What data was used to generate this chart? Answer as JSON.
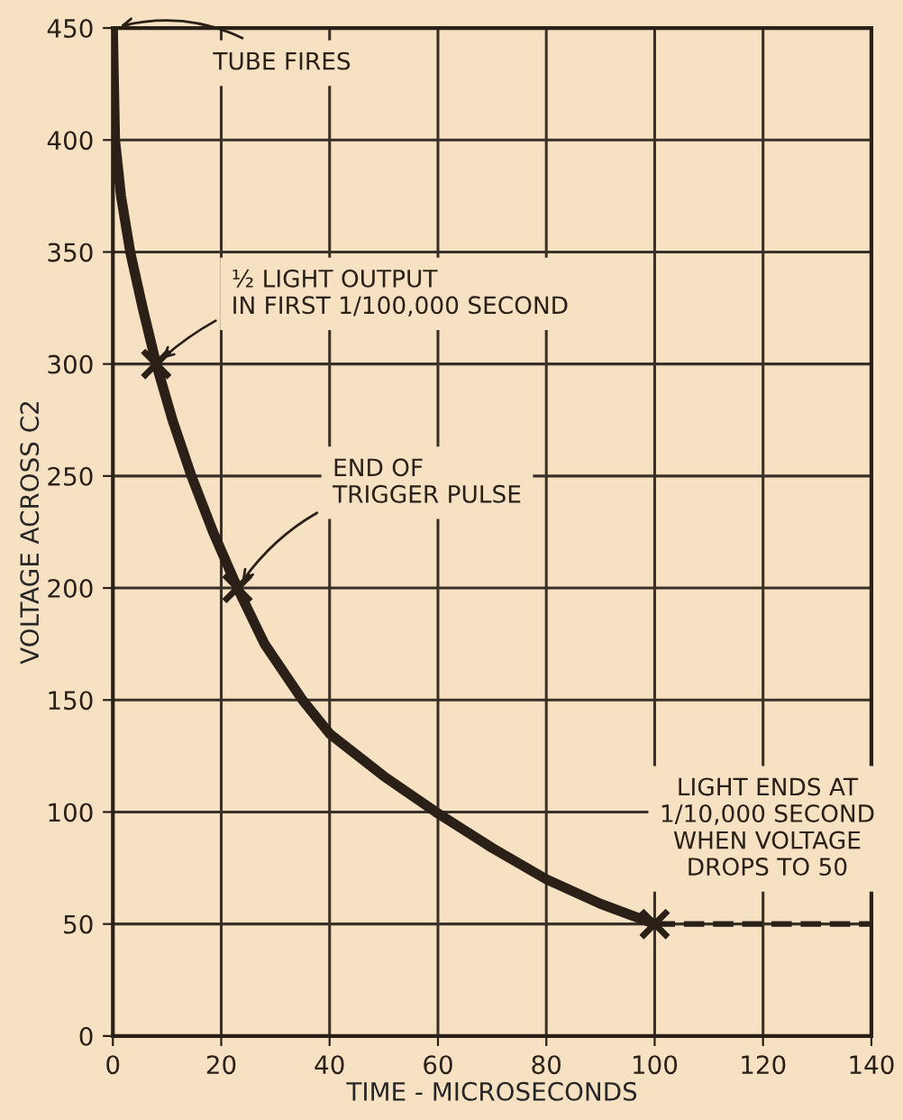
{
  "chart_data": {
    "type": "line",
    "xlabel": "TIME - MICROSECONDS",
    "ylabel": "VOLTAGE ACROSS C2",
    "xlim": [
      0,
      140
    ],
    "ylim": [
      0,
      450
    ],
    "xticks": [
      0,
      20,
      40,
      60,
      80,
      100,
      120,
      140
    ],
    "yticks": [
      0,
      50,
      100,
      150,
      200,
      250,
      300,
      350,
      400,
      450
    ],
    "grid": true,
    "legend": false,
    "series": [
      {
        "color": "#2a2018",
        "line_style": "solid",
        "marker": "none",
        "x": [
          0,
          0.4,
          1.5,
          3.2,
          5.5,
          8,
          11,
          14.5,
          18.5,
          23,
          28,
          35,
          40,
          50,
          59.6,
          70,
          80,
          90,
          100
        ],
        "values": [
          450,
          400,
          375,
          350,
          325,
          300,
          275,
          250,
          225,
          200,
          175,
          150,
          135,
          116,
          100,
          84,
          70,
          59,
          50
        ]
      },
      {
        "type": "line",
        "color": "#2a2018",
        "line_style": "dashed",
        "marker": "none",
        "x": [
          100,
          140
        ],
        "values": [
          50,
          50
        ]
      },
      {
        "type": "scatter",
        "color": "#2a2018",
        "marker": "cross",
        "x": [
          8,
          23,
          100
        ],
        "values": [
          300,
          200,
          50
        ]
      }
    ],
    "annotations": [
      {
        "text": "TUBE FIRES",
        "x": 0,
        "y": 450
      },
      {
        "text": "½ LIGHT OUTPUT\nIN FIRST 1/100,000 SECOND",
        "x": 8,
        "y": 300
      },
      {
        "text": "END OF\nTRIGGER PULSE",
        "x": 23,
        "y": 200
      },
      {
        "text": "LIGHT ENDS AT\n1/10,000 SECOND\nWHEN VOLTAGE\nDROPS TO 50",
        "x": 100,
        "y": 50
      }
    ]
  }
}
